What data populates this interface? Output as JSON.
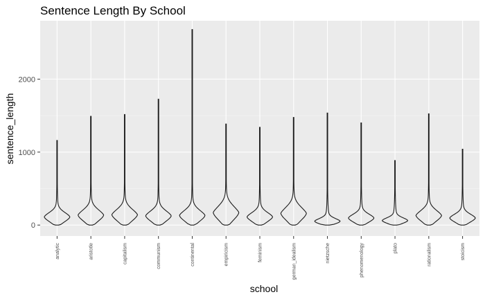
{
  "chart_data": {
    "type": "violin",
    "title": "Sentence Length By School",
    "xlabel": "school",
    "ylabel": "sentence_length",
    "ylim": [
      -150,
      2800
    ],
    "yticks": [
      0,
      1000,
      2000
    ],
    "ytick_labels": [
      "0",
      "1000",
      "2000"
    ],
    "grid": true,
    "theme": "ggplot2 grey",
    "categories": [
      "analytic",
      "aristotle",
      "capitalism",
      "communism",
      "continental",
      "empiricism",
      "feminism",
      "german_idealism",
      "nietzsche",
      "phenomenology",
      "plato",
      "rationalism",
      "stoicism"
    ],
    "min": [
      0,
      0,
      0,
      0,
      0,
      0,
      0,
      0,
      0,
      0,
      0,
      0,
      0
    ],
    "max": [
      1160,
      1490,
      1515,
      1725,
      2680,
      1385,
      1340,
      1475,
      1535,
      1400,
      885,
      1525,
      1040
    ],
    "peak": [
      110,
      135,
      140,
      125,
      130,
      170,
      110,
      160,
      50,
      95,
      60,
      130,
      95
    ]
  },
  "colors": {
    "panel": "#ebebeb",
    "grid": "#ffffff",
    "violin_outline": "#1a1a1a"
  }
}
